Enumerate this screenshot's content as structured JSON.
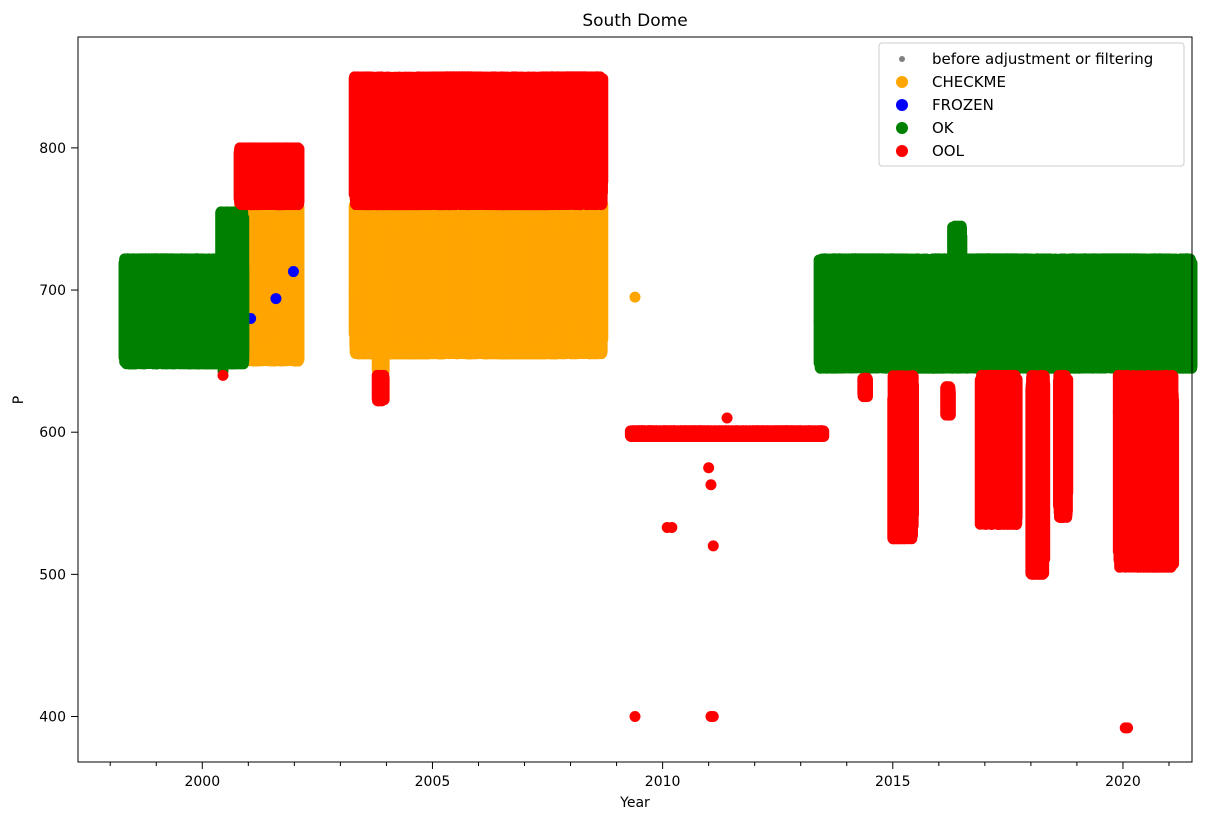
{
  "chart_data": {
    "type": "scatter",
    "title": "South Dome",
    "xlabel": "Year",
    "ylabel": "P",
    "xlim": [
      1997.3,
      2021.5
    ],
    "ylim": [
      368,
      878
    ],
    "xticks": [
      2000,
      2005,
      2010,
      2015,
      2020
    ],
    "xtick_labels": [
      "2000",
      "2005",
      "2010",
      "2015",
      "2020"
    ],
    "yticks": [
      400,
      500,
      600,
      700,
      800
    ],
    "ytick_labels": [
      "400",
      "500",
      "600",
      "700",
      "800"
    ],
    "grid": false,
    "legend_position": "top-right",
    "series": [
      {
        "name": "before adjustment or filtering",
        "color": "#808080",
        "marker": "small-dot",
        "bands": [],
        "points": []
      },
      {
        "name": "CHECKME",
        "color": "#ffa500",
        "marker": "dot",
        "bands": [
          {
            "x0": 2000.8,
            "x1": 2002.1,
            "low": 650,
            "high": 760
          },
          {
            "x0": 2003.3,
            "x1": 2008.7,
            "low": 655,
            "high": 760
          },
          {
            "x0": 2003.8,
            "x1": 2003.95,
            "low": 640,
            "high": 700
          }
        ],
        "points": [
          [
            2009.4,
            695
          ],
          [
            2003.3,
            700
          ]
        ]
      },
      {
        "name": "FROZEN",
        "color": "#0000ff",
        "marker": "dot",
        "bands": [],
        "points": [
          [
            2001.05,
            680
          ],
          [
            2001.6,
            694
          ],
          [
            2001.98,
            713
          ]
        ]
      },
      {
        "name": "OK",
        "color": "#008000",
        "marker": "dot",
        "bands": [
          {
            "x0": 1998.3,
            "x1": 2000.9,
            "low": 648,
            "high": 722
          },
          {
            "x0": 2000.4,
            "x1": 2000.9,
            "low": 655,
            "high": 755
          },
          {
            "x0": 2013.4,
            "x1": 2021.5,
            "low": 645,
            "high": 722
          },
          {
            "x0": 2016.3,
            "x1": 2016.5,
            "low": 680,
            "high": 745
          }
        ],
        "points": [
          [
            2013.4,
            678
          ],
          [
            2000.45,
            643
          ]
        ]
      },
      {
        "name": "OOL",
        "color": "#ff0000",
        "marker": "dot",
        "bands": [
          {
            "x0": 2000.8,
            "x1": 2002.1,
            "low": 760,
            "high": 800
          },
          {
            "x0": 2003.3,
            "x1": 2008.7,
            "low": 760,
            "high": 850
          },
          {
            "x0": 2003.8,
            "x1": 2003.95,
            "low": 622,
            "high": 640
          },
          {
            "x0": 2009.3,
            "x1": 2013.5,
            "low": 597,
            "high": 601
          },
          {
            "x0": 2015.0,
            "x1": 2015.45,
            "low": 525,
            "high": 640
          },
          {
            "x0": 2016.9,
            "x1": 2017.7,
            "low": 535,
            "high": 640
          },
          {
            "x0": 2018.0,
            "x1": 2018.3,
            "low": 500,
            "high": 640
          },
          {
            "x0": 2018.6,
            "x1": 2018.8,
            "low": 540,
            "high": 640
          },
          {
            "x0": 2019.9,
            "x1": 2021.1,
            "low": 505,
            "high": 640
          },
          {
            "x0": 2014.35,
            "x1": 2014.45,
            "low": 625,
            "high": 638
          },
          {
            "x0": 2016.15,
            "x1": 2016.25,
            "low": 612,
            "high": 632
          }
        ],
        "points": [
          [
            2000.45,
            640
          ],
          [
            2009.4,
            400
          ],
          [
            2011.05,
            400
          ],
          [
            2011.1,
            400
          ],
          [
            2010.1,
            533
          ],
          [
            2010.2,
            533
          ],
          [
            2011.1,
            520
          ],
          [
            2011.05,
            563
          ],
          [
            2011.0,
            575
          ],
          [
            2011.4,
            610
          ],
          [
            2020.05,
            392
          ],
          [
            2020.1,
            392
          ],
          [
            2015.1,
            542
          ],
          [
            2018.7,
            540
          ],
          [
            2019.9,
            638
          ],
          [
            2019.9,
            614
          ]
        ]
      }
    ]
  }
}
